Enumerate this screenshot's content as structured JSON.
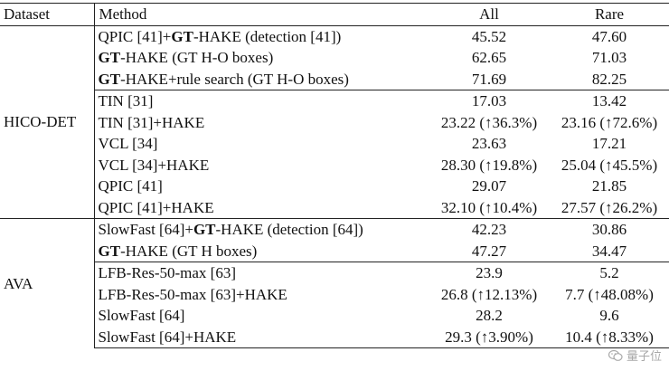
{
  "header": {
    "dataset": "Dataset",
    "method": "Method",
    "all": "All",
    "rare": "Rare"
  },
  "groups": [
    {
      "dataset": "HICO-DET",
      "rows": [
        {
          "method": [
            {
              "t": "QPIC [41]+"
            },
            {
              "t": "GT",
              "b": true
            },
            {
              "t": "-HAKE (detection [41])"
            }
          ],
          "all": "45.52",
          "rare": "47.60",
          "all_bold": false,
          "rare_bold": false,
          "sep_before": false
        },
        {
          "method": [
            {
              "t": "GT",
              "b": true
            },
            {
              "t": "-HAKE (GT H-O boxes)"
            }
          ],
          "all": "62.65",
          "rare": "71.03",
          "all_bold": false,
          "rare_bold": false,
          "sep_before": false
        },
        {
          "method": [
            {
              "t": "GT",
              "b": true
            },
            {
              "t": "-HAKE+rule search (GT H-O boxes)"
            }
          ],
          "all": "71.69",
          "rare": "82.25",
          "all_bold": true,
          "rare_bold": true,
          "sep_before": false
        },
        {
          "method": [
            {
              "t": "TIN [31]"
            }
          ],
          "all": "17.03",
          "rare": "13.42",
          "all_bold": false,
          "rare_bold": false,
          "sep_before": true
        },
        {
          "method": [
            {
              "t": "TIN [31]+HAKE"
            }
          ],
          "all": "23.22 (↑36.3%)",
          "rare": "23.16 (↑72.6%)",
          "all_bold": true,
          "rare_bold": true,
          "sep_before": false
        },
        {
          "method": [
            {
              "t": "VCL [34]"
            }
          ],
          "all": "23.63",
          "rare": "17.21",
          "all_bold": false,
          "rare_bold": false,
          "sep_before": false
        },
        {
          "method": [
            {
              "t": "VCL [34]+HAKE"
            }
          ],
          "all": "28.30 (↑19.8%)",
          "rare": "25.04 (↑45.5%)",
          "all_bold": true,
          "rare_bold": true,
          "sep_before": false
        },
        {
          "method": [
            {
              "t": "QPIC [41]"
            }
          ],
          "all": "29.07",
          "rare": "21.85",
          "all_bold": false,
          "rare_bold": false,
          "sep_before": false
        },
        {
          "method": [
            {
              "t": "QPIC [41]+HAKE"
            }
          ],
          "all": "32.10 (↑10.4%)",
          "rare": "27.57 (↑26.2%)",
          "all_bold": true,
          "rare_bold": true,
          "sep_before": false
        }
      ]
    },
    {
      "dataset": "AVA",
      "rows": [
        {
          "method": [
            {
              "t": "SlowFast [64]+"
            },
            {
              "t": "GT",
              "b": true
            },
            {
              "t": "-HAKE (detection [64])"
            }
          ],
          "all": "42.23",
          "rare": "30.86",
          "all_bold": false,
          "rare_bold": false,
          "sep_before": false
        },
        {
          "method": [
            {
              "t": "GT",
              "b": true
            },
            {
              "t": "-HAKE (GT H boxes)"
            }
          ],
          "all": "47.27",
          "rare": "34.47",
          "all_bold": true,
          "rare_bold": true,
          "sep_before": false
        },
        {
          "method": [
            {
              "t": "LFB-Res-50-max [63]"
            }
          ],
          "all": "23.9",
          "rare": "5.2",
          "all_bold": false,
          "rare_bold": false,
          "sep_before": true
        },
        {
          "method": [
            {
              "t": "LFB-Res-50-max [63]+HAKE"
            }
          ],
          "all": "26.8 (↑12.13%)",
          "rare": "7.7 (↑48.08%)",
          "all_bold": true,
          "rare_bold": true,
          "sep_before": false
        },
        {
          "method": [
            {
              "t": "SlowFast [64]"
            }
          ],
          "all": "28.2",
          "rare": "9.6",
          "all_bold": false,
          "rare_bold": false,
          "sep_before": false
        },
        {
          "method": [
            {
              "t": "SlowFast [64]+HAKE"
            }
          ],
          "all": "29.3 (↑3.90%)",
          "rare": "10.4 (↑8.33%)",
          "all_bold": true,
          "rare_bold": true,
          "sep_before": false
        }
      ]
    }
  ],
  "watermark": {
    "text": "量子位",
    "icon": "wechat-icon"
  }
}
